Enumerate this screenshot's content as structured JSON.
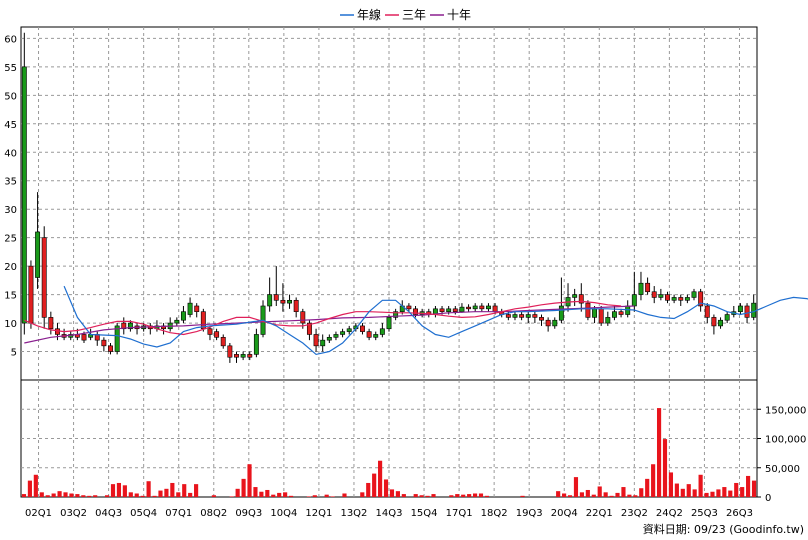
{
  "chart_data": [
    {
      "type": "candlestick",
      "ylim": [
        0,
        62
      ],
      "y_ticks": [
        5,
        10,
        15,
        20,
        25,
        30,
        35,
        40,
        45,
        50,
        55,
        60
      ],
      "x_tick_labels": [
        "02Q1",
        "03Q2",
        "04Q3",
        "05Q4",
        "07Q1",
        "08Q2",
        "09Q3",
        "10Q4",
        "12Q1",
        "13Q2",
        "14Q3",
        "15Q4",
        "17Q1",
        "18Q2",
        "19Q3",
        "20Q4",
        "22Q1",
        "23Q2",
        "24Q2",
        "25Q3",
        "26Q3"
      ],
      "grid": true,
      "legend": {
        "position": "top-center",
        "items": [
          {
            "name": "年線",
            "color": "#1f6fd0"
          },
          {
            "name": "三年",
            "color": "#e0205a"
          },
          {
            "name": "十年",
            "color": "#8a1f8f"
          }
        ]
      },
      "candles": [
        [
          10,
          55,
          61,
          8
        ],
        [
          20,
          10,
          21,
          9
        ],
        [
          18,
          26,
          33,
          16
        ],
        [
          25,
          11,
          27,
          9
        ],
        [
          11,
          9,
          12,
          8
        ],
        [
          9,
          8,
          10,
          7
        ],
        [
          8,
          7.5,
          9,
          7
        ],
        [
          7.5,
          8,
          8.5,
          7
        ],
        [
          8,
          7.5,
          9,
          7
        ],
        [
          8,
          7,
          8.5,
          6.5
        ],
        [
          7.5,
          8,
          9,
          7
        ],
        [
          8,
          7,
          8.5,
          6
        ],
        [
          7,
          6,
          7.5,
          5
        ],
        [
          6,
          5,
          6.5,
          4.5
        ],
        [
          5,
          9.5,
          10,
          4.5
        ],
        [
          10,
          9,
          11,
          8
        ],
        [
          9,
          10,
          10.5,
          8.5
        ],
        [
          9.5,
          9,
          10,
          8
        ],
        [
          9,
          9.5,
          10,
          8.5
        ],
        [
          9.5,
          9,
          10,
          8
        ],
        [
          9,
          9.5,
          10.5,
          8.5
        ],
        [
          9.5,
          9,
          10,
          8
        ],
        [
          9,
          10,
          11,
          8.5
        ],
        [
          10,
          10.5,
          11,
          9.5
        ],
        [
          10.5,
          12,
          13,
          10
        ],
        [
          11.5,
          13.5,
          14.5,
          11
        ],
        [
          13,
          12,
          13.5,
          11
        ],
        [
          12,
          9,
          12.5,
          8.5
        ],
        [
          9,
          8,
          9.5,
          7
        ],
        [
          8.5,
          7.5,
          9,
          7
        ],
        [
          7.5,
          6,
          8,
          5.5
        ],
        [
          6,
          4,
          6.5,
          3
        ],
        [
          4.5,
          4,
          5,
          3
        ],
        [
          4,
          4.5,
          5,
          3.5
        ],
        [
          4.5,
          4,
          5,
          3.5
        ],
        [
          4.5,
          8,
          9,
          4
        ],
        [
          8,
          13,
          14,
          7.5
        ],
        [
          13,
          15,
          18,
          12
        ],
        [
          15,
          14,
          20,
          13
        ],
        [
          14,
          13.5,
          17,
          12
        ],
        [
          13.5,
          14,
          15,
          12.5
        ],
        [
          14,
          12,
          14.5,
          11
        ],
        [
          12,
          10,
          12.5,
          9
        ],
        [
          10,
          8,
          10.5,
          7
        ],
        [
          8,
          6,
          9,
          5
        ],
        [
          6,
          7,
          8,
          5
        ],
        [
          7,
          7.5,
          8,
          6.5
        ],
        [
          7.5,
          8,
          8.5,
          7
        ],
        [
          8,
          8.5,
          9,
          7.5
        ],
        [
          8.5,
          9,
          9.5,
          8
        ],
        [
          9,
          9.5,
          10,
          8.5
        ],
        [
          9.5,
          8.5,
          10,
          8
        ],
        [
          8.5,
          7.5,
          9,
          7
        ],
        [
          7.5,
          8,
          8.5,
          7
        ],
        [
          8,
          9,
          10,
          7.5
        ],
        [
          9,
          11,
          11.5,
          8.5
        ],
        [
          11,
          12,
          12.5,
          10.5
        ],
        [
          12,
          13,
          14,
          11.5
        ],
        [
          13,
          12.5,
          13.5,
          12
        ],
        [
          12.5,
          11.5,
          13,
          11
        ],
        [
          11.5,
          12,
          12.5,
          11
        ],
        [
          12,
          11.5,
          12.5,
          11
        ],
        [
          11.5,
          12.5,
          13,
          11
        ],
        [
          12.5,
          12,
          13,
          11.5
        ],
        [
          12,
          12.5,
          13,
          11.5
        ],
        [
          12.5,
          12,
          13,
          11.5
        ],
        [
          12,
          12.8,
          13.5,
          11.8
        ],
        [
          12.8,
          12.5,
          13.3,
          12
        ],
        [
          12.5,
          13,
          13.5,
          12
        ],
        [
          13,
          12.5,
          13.5,
          12
        ],
        [
          12.5,
          13,
          13.5,
          12
        ],
        [
          13,
          12,
          13.5,
          11.5
        ],
        [
          12,
          11.5,
          12.5,
          11
        ],
        [
          11.5,
          11,
          12,
          10.5
        ],
        [
          11,
          11.5,
          12,
          10.5
        ],
        [
          11.5,
          11,
          12,
          10.5
        ],
        [
          11,
          11.5,
          12,
          10
        ],
        [
          11.5,
          11,
          12,
          10
        ],
        [
          11,
          10.5,
          11.5,
          9.5
        ],
        [
          10.5,
          9.5,
          11,
          8.5
        ],
        [
          9.5,
          10.5,
          11,
          9
        ],
        [
          10.5,
          13,
          18,
          10
        ],
        [
          13,
          14.5,
          17,
          12
        ],
        [
          14.5,
          15,
          16,
          13
        ],
        [
          15,
          13.5,
          17,
          12
        ],
        [
          13.5,
          11,
          14,
          10.5
        ],
        [
          11,
          12.5,
          13,
          10
        ],
        [
          12.5,
          10,
          13,
          9.5
        ],
        [
          10,
          11,
          12,
          9.5
        ],
        [
          11,
          12,
          13,
          10.5
        ],
        [
          12,
          11.5,
          12.5,
          11
        ],
        [
          11.5,
          13,
          14,
          11
        ],
        [
          13,
          15,
          19,
          12
        ],
        [
          15,
          17,
          19,
          14
        ],
        [
          17,
          15.5,
          18,
          15
        ],
        [
          15.5,
          14.5,
          16.5,
          13.5
        ],
        [
          14.5,
          15,
          16,
          14
        ],
        [
          15,
          14,
          15.5,
          13.5
        ],
        [
          14,
          14.5,
          15,
          13.5
        ],
        [
          14.5,
          14,
          15,
          13
        ],
        [
          14,
          14.5,
          15,
          13.5
        ],
        [
          14.5,
          15.5,
          16,
          14
        ],
        [
          15.5,
          13,
          16,
          12
        ],
        [
          13,
          11,
          13.5,
          10
        ],
        [
          11,
          9.5,
          11.5,
          8
        ],
        [
          9.5,
          10.5,
          11,
          9
        ],
        [
          10.5,
          11.5,
          12,
          10
        ],
        [
          11.5,
          12,
          13,
          11
        ],
        [
          12,
          13,
          13.5,
          11.5
        ],
        [
          13,
          11,
          13.5,
          10
        ],
        [
          11,
          13.5,
          15,
          10.5
        ]
      ],
      "ma_year": [
        [
          6,
          16.5
        ],
        [
          8,
          11
        ],
        [
          10,
          8
        ],
        [
          14,
          7.8
        ],
        [
          16,
          7.2
        ],
        [
          18,
          6.3
        ],
        [
          20,
          5.8
        ],
        [
          22,
          6.5
        ],
        [
          24,
          8.5
        ],
        [
          26,
          9.2
        ],
        [
          28,
          9.5
        ],
        [
          32,
          9.8
        ],
        [
          36,
          10.5
        ],
        [
          38,
          9.5
        ],
        [
          40,
          8
        ],
        [
          42,
          6.5
        ],
        [
          44,
          4.5
        ],
        [
          46,
          5
        ],
        [
          48,
          6.5
        ],
        [
          50,
          9
        ],
        [
          52,
          12
        ],
        [
          54,
          14
        ],
        [
          56,
          14
        ],
        [
          58,
          12
        ],
        [
          60,
          9.5
        ],
        [
          62,
          8
        ],
        [
          64,
          7.5
        ],
        [
          66,
          8.5
        ],
        [
          68,
          9.5
        ],
        [
          70,
          10.5
        ],
        [
          72,
          11.5
        ],
        [
          74,
          12
        ],
        [
          76,
          12
        ],
        [
          80,
          12.2
        ],
        [
          84,
          12.5
        ],
        [
          88,
          12.5
        ],
        [
          92,
          12.3
        ],
        [
          94,
          11.5
        ],
        [
          96,
          11
        ],
        [
          98,
          10.8
        ],
        [
          100,
          12
        ],
        [
          102,
          13.5
        ],
        [
          104,
          13
        ],
        [
          106,
          12
        ],
        [
          108,
          11.5
        ],
        [
          110,
          12
        ],
        [
          112,
          13
        ],
        [
          114,
          14
        ],
        [
          116,
          14.5
        ],
        [
          118,
          14.3
        ],
        [
          120,
          13.5
        ],
        [
          122,
          12.5
        ],
        [
          124,
          11.5
        ],
        [
          126,
          11
        ],
        [
          128,
          11.5
        ],
        [
          130,
          12
        ]
      ],
      "ma_three": [
        [
          0,
          10.5
        ],
        [
          2,
          9.5
        ],
        [
          4,
          8.8
        ],
        [
          6,
          8.5
        ],
        [
          8,
          8.7
        ],
        [
          10,
          9.2
        ],
        [
          12,
          9.8
        ],
        [
          14,
          10.3
        ],
        [
          16,
          10.3
        ],
        [
          18,
          9.8
        ],
        [
          20,
          9
        ],
        [
          22,
          8.3
        ],
        [
          24,
          8
        ],
        [
          26,
          8.5
        ],
        [
          28,
          9.3
        ],
        [
          30,
          10.3
        ],
        [
          32,
          11
        ],
        [
          34,
          11
        ],
        [
          36,
          10.3
        ],
        [
          38,
          9.7
        ],
        [
          40,
          9.5
        ],
        [
          42,
          9.5
        ],
        [
          44,
          10
        ],
        [
          46,
          10.8
        ],
        [
          48,
          11.5
        ],
        [
          50,
          12
        ],
        [
          52,
          12
        ],
        [
          54,
          11.9
        ],
        [
          56,
          11.8
        ],
        [
          58,
          11.8
        ],
        [
          60,
          11.7
        ],
        [
          62,
          11.5
        ],
        [
          64,
          11.2
        ],
        [
          66,
          11
        ],
        [
          68,
          11.1
        ],
        [
          70,
          11.5
        ],
        [
          72,
          12
        ],
        [
          74,
          12.5
        ],
        [
          76,
          12.8
        ],
        [
          78,
          13.2
        ],
        [
          80,
          13.5
        ],
        [
          82,
          13.7
        ],
        [
          84,
          13.8
        ],
        [
          86,
          13.6
        ],
        [
          88,
          13.2
        ],
        [
          90,
          13
        ]
      ],
      "ma_ten": [
        [
          0,
          6.5
        ],
        [
          4,
          7.5
        ],
        [
          8,
          8
        ],
        [
          12,
          8.8
        ],
        [
          16,
          9.2
        ],
        [
          20,
          9.4
        ],
        [
          24,
          9.5
        ],
        [
          28,
          9.8
        ],
        [
          32,
          10
        ],
        [
          36,
          10.2
        ],
        [
          40,
          10.4
        ],
        [
          44,
          10.6
        ],
        [
          48,
          10.9
        ],
        [
          52,
          11
        ],
        [
          56,
          11.2
        ],
        [
          60,
          11.4
        ],
        [
          64,
          11.8
        ],
        [
          68,
          12
        ],
        [
          72,
          12
        ],
        [
          76,
          12.2
        ],
        [
          80,
          12.4
        ],
        [
          84,
          12.6
        ],
        [
          88,
          12.8
        ],
        [
          92,
          13
        ]
      ]
    },
    {
      "type": "bar",
      "ylim": [
        0,
        200000
      ],
      "y_ticks": [
        0,
        50000,
        100000,
        150000
      ],
      "y_tick_labels": [
        "0",
        "50,000",
        "100,000",
        "150,000"
      ],
      "values": [
        5000,
        28000,
        38000,
        8000,
        3000,
        6000,
        10000,
        8000,
        6000,
        5000,
        3000,
        2000,
        3000,
        0,
        3000,
        22000,
        24000,
        20000,
        8000,
        6000,
        2000,
        27000,
        2000,
        11000,
        14000,
        24000,
        8000,
        22000,
        7000,
        22000,
        0,
        0,
        3000,
        0,
        0,
        1000,
        14000,
        31000,
        56000,
        17000,
        9000,
        12000,
        4000,
        7000,
        8000,
        2000,
        0,
        0,
        1000,
        3000,
        0,
        4000,
        1000,
        0,
        6000,
        0,
        0,
        8000,
        24000,
        40000,
        62000,
        30000,
        13000,
        10000,
        5000,
        0,
        5000,
        3000,
        2000,
        5000,
        0,
        0,
        3000,
        5000,
        4000,
        5000,
        6000,
        6000,
        2000,
        0,
        0,
        0,
        0,
        0,
        2000,
        0,
        0,
        0,
        0,
        0,
        10000,
        6000,
        3000,
        34000,
        8000,
        12000,
        4000,
        18000,
        8000,
        2000,
        7000,
        17000,
        4000,
        3000,
        15000,
        31000,
        56000,
        152000,
        99000,
        42000,
        23000,
        14000,
        22000,
        13000,
        38000,
        7000,
        9000,
        13000,
        17000,
        11000,
        24000,
        17000,
        36000,
        28000
      ]
    }
  ],
  "footer_text": "資料日期: 09/23  (Goodinfo.tw)"
}
